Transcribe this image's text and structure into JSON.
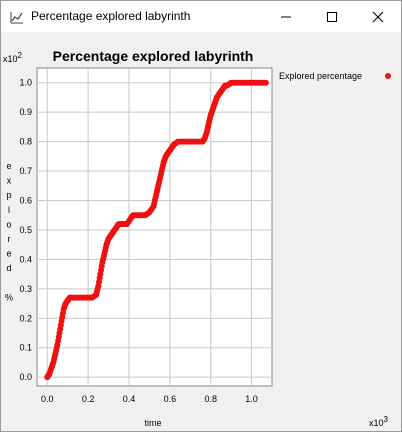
{
  "window": {
    "title": "Percentage explored labyrinth"
  },
  "chart_data": {
    "type": "scatter",
    "title": "Percentage explored labyrinth",
    "xlabel": "time",
    "ylabel_letters": [
      "e",
      "x",
      "p",
      "l",
      "o",
      "r",
      "e",
      "d",
      "",
      "%"
    ],
    "x_multiplier": "x10",
    "x_multiplier_exp": "3",
    "y_multiplier": "x10",
    "y_multiplier_exp": "2",
    "xlim": [
      -0.05,
      1.1
    ],
    "ylim": [
      -0.03,
      1.05
    ],
    "x_ticks": [
      0.0,
      0.2,
      0.4,
      0.6,
      0.8,
      1.0
    ],
    "x_tick_labels": [
      "0.0",
      "0.2",
      "0.4",
      "0.6",
      "0.8",
      "1.0"
    ],
    "y_ticks": [
      0.0,
      0.1,
      0.2,
      0.3,
      0.4,
      0.5,
      0.6,
      0.7,
      0.8,
      0.9,
      1.0
    ],
    "y_tick_labels": [
      "0.0",
      "0.1",
      "0.2",
      "0.3",
      "0.4",
      "0.5",
      "0.6",
      "0.7",
      "0.8",
      "0.9",
      "1.0"
    ],
    "grid": true,
    "legend_position": "top-right, outside plot",
    "series": [
      {
        "name": "Explored percentage",
        "color": "#ee1111",
        "points": [
          [
            0.0,
            0.0
          ],
          [
            0.01,
            0.01
          ],
          [
            0.02,
            0.03
          ],
          [
            0.03,
            0.05
          ],
          [
            0.04,
            0.08
          ],
          [
            0.05,
            0.11
          ],
          [
            0.06,
            0.15
          ],
          [
            0.07,
            0.19
          ],
          [
            0.08,
            0.23
          ],
          [
            0.09,
            0.25
          ],
          [
            0.1,
            0.26
          ],
          [
            0.11,
            0.27
          ],
          [
            0.13,
            0.27
          ],
          [
            0.16,
            0.27
          ],
          [
            0.19,
            0.27
          ],
          [
            0.22,
            0.27
          ],
          [
            0.24,
            0.28
          ],
          [
            0.25,
            0.31
          ],
          [
            0.26,
            0.35
          ],
          [
            0.27,
            0.39
          ],
          [
            0.28,
            0.42
          ],
          [
            0.29,
            0.45
          ],
          [
            0.3,
            0.47
          ],
          [
            0.31,
            0.48
          ],
          [
            0.32,
            0.49
          ],
          [
            0.33,
            0.5
          ],
          [
            0.34,
            0.51
          ],
          [
            0.35,
            0.52
          ],
          [
            0.37,
            0.52
          ],
          [
            0.39,
            0.52
          ],
          [
            0.41,
            0.54
          ],
          [
            0.42,
            0.55
          ],
          [
            0.44,
            0.55
          ],
          [
            0.46,
            0.55
          ],
          [
            0.48,
            0.55
          ],
          [
            0.5,
            0.56
          ],
          [
            0.52,
            0.58
          ],
          [
            0.53,
            0.61
          ],
          [
            0.54,
            0.64
          ],
          [
            0.55,
            0.67
          ],
          [
            0.56,
            0.7
          ],
          [
            0.57,
            0.73
          ],
          [
            0.58,
            0.75
          ],
          [
            0.59,
            0.76
          ],
          [
            0.6,
            0.77
          ],
          [
            0.61,
            0.78
          ],
          [
            0.62,
            0.79
          ],
          [
            0.64,
            0.8
          ],
          [
            0.67,
            0.8
          ],
          [
            0.7,
            0.8
          ],
          [
            0.73,
            0.8
          ],
          [
            0.76,
            0.8
          ],
          [
            0.77,
            0.81
          ],
          [
            0.78,
            0.83
          ],
          [
            0.79,
            0.86
          ],
          [
            0.8,
            0.89
          ],
          [
            0.81,
            0.91
          ],
          [
            0.82,
            0.93
          ],
          [
            0.83,
            0.95
          ],
          [
            0.84,
            0.96
          ],
          [
            0.85,
            0.97
          ],
          [
            0.86,
            0.98
          ],
          [
            0.87,
            0.99
          ],
          [
            0.88,
            0.99
          ],
          [
            0.9,
            1.0
          ],
          [
            0.93,
            1.0
          ],
          [
            0.96,
            1.0
          ],
          [
            0.99,
            1.0
          ],
          [
            1.02,
            1.0
          ],
          [
            1.05,
            1.0
          ],
          [
            1.07,
            1.0
          ]
        ]
      }
    ]
  }
}
